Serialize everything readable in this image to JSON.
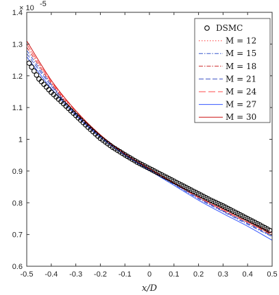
{
  "chart_data": {
    "type": "line",
    "title": "",
    "xlabel": "x/D",
    "ylabel": "",
    "xlim": [
      -0.5,
      0.5
    ],
    "ylim": [
      0.6,
      1.4
    ],
    "y_scale_label": "× 10",
    "y_scale_exponent": "-5",
    "xticks": [
      "-0.5",
      "-0.4",
      "-0.3",
      "-0.2",
      "-0.1",
      "0",
      "0.1",
      "0.2",
      "0.3",
      "0.4",
      "0.5"
    ],
    "yticks": [
      "0.6",
      "0.7",
      "0.8",
      "0.9",
      "1",
      "1.1",
      "1.2",
      "1.3",
      "1.4"
    ],
    "grid": false,
    "legend_position": "top-right",
    "dsmc": {
      "name": "DSMC",
      "x_start": -0.49,
      "x_end": 0.49,
      "x_step": 0.01,
      "anchors_x": [
        -0.49,
        -0.45,
        -0.4,
        -0.35,
        -0.3,
        -0.25,
        -0.2,
        -0.15,
        -0.1,
        -0.05,
        0,
        0.05,
        0.1,
        0.15,
        0.2,
        0.25,
        0.3,
        0.35,
        0.4,
        0.45,
        0.49
      ],
      "anchors_y": [
        1.24,
        1.19,
        1.148,
        1.112,
        1.075,
        1.038,
        1.003,
        0.975,
        0.951,
        0.928,
        0.908,
        0.888,
        0.868,
        0.848,
        0.828,
        0.808,
        0.79,
        0.77,
        0.75,
        0.73,
        0.713
      ]
    },
    "series": [
      {
        "name": "M = 12",
        "color": "#ff3b3b",
        "dash": "1.5 2.5",
        "x": [
          -0.5,
          -0.4,
          -0.3,
          -0.2,
          -0.1,
          0,
          0.1,
          0.2,
          0.3,
          0.4,
          0.5
        ],
        "y": [
          1.3,
          1.18,
          1.085,
          1.012,
          0.955,
          0.908,
          0.862,
          0.818,
          0.778,
          0.74,
          0.7
        ]
      },
      {
        "name": "M = 15",
        "color": "#3355cc",
        "dash": "6 2 1.5 2",
        "x": [
          -0.5,
          -0.4,
          -0.3,
          -0.2,
          -0.1,
          0,
          0.1,
          0.2,
          0.3,
          0.4,
          0.5
        ],
        "y": [
          1.28,
          1.172,
          1.08,
          1.01,
          0.952,
          0.905,
          0.858,
          0.812,
          0.772,
          0.732,
          0.693
        ]
      },
      {
        "name": "M = 18",
        "color": "#cc2222",
        "dash": "6 2 1.5 2",
        "x": [
          -0.5,
          -0.4,
          -0.3,
          -0.2,
          -0.1,
          0,
          0.1,
          0.2,
          0.3,
          0.4,
          0.5
        ],
        "y": [
          1.29,
          1.176,
          1.082,
          1.011,
          0.953,
          0.906,
          0.861,
          0.816,
          0.776,
          0.738,
          0.698
        ]
      },
      {
        "name": "M = 21",
        "color": "#3a4fc2",
        "dash": "7 3",
        "x": [
          -0.5,
          -0.4,
          -0.3,
          -0.2,
          -0.1,
          0,
          0.1,
          0.2,
          0.3,
          0.4,
          0.5
        ],
        "y": [
          1.27,
          1.168,
          1.08,
          1.008,
          0.951,
          0.905,
          0.86,
          0.815,
          0.774,
          0.735,
          0.695
        ]
      },
      {
        "name": "M = 24",
        "color": "#ff4a4a",
        "dash": "10 4",
        "x": [
          -0.5,
          -0.4,
          -0.3,
          -0.2,
          -0.1,
          0,
          0.1,
          0.2,
          0.3,
          0.4,
          0.5
        ],
        "y": [
          1.3,
          1.182,
          1.088,
          1.013,
          0.954,
          0.907,
          0.861,
          0.817,
          0.777,
          0.739,
          0.7
        ]
      },
      {
        "name": "M = 27",
        "color": "#3355ff",
        "dash": "",
        "x": [
          -0.5,
          -0.4,
          -0.3,
          -0.2,
          -0.1,
          0,
          0.1,
          0.2,
          0.3,
          0.4,
          0.5
        ],
        "y": [
          1.26,
          1.16,
          1.076,
          1.006,
          0.95,
          0.902,
          0.855,
          0.808,
          0.766,
          0.726,
          0.682
        ]
      },
      {
        "name": "M = 30",
        "color": "#cc1111",
        "dash": "",
        "x": [
          -0.5,
          -0.4,
          -0.3,
          -0.2,
          -0.1,
          0,
          0.1,
          0.2,
          0.3,
          0.4,
          0.5
        ],
        "y": [
          1.31,
          1.186,
          1.09,
          1.014,
          0.955,
          0.908,
          0.863,
          0.82,
          0.781,
          0.743,
          0.705
        ]
      }
    ]
  }
}
